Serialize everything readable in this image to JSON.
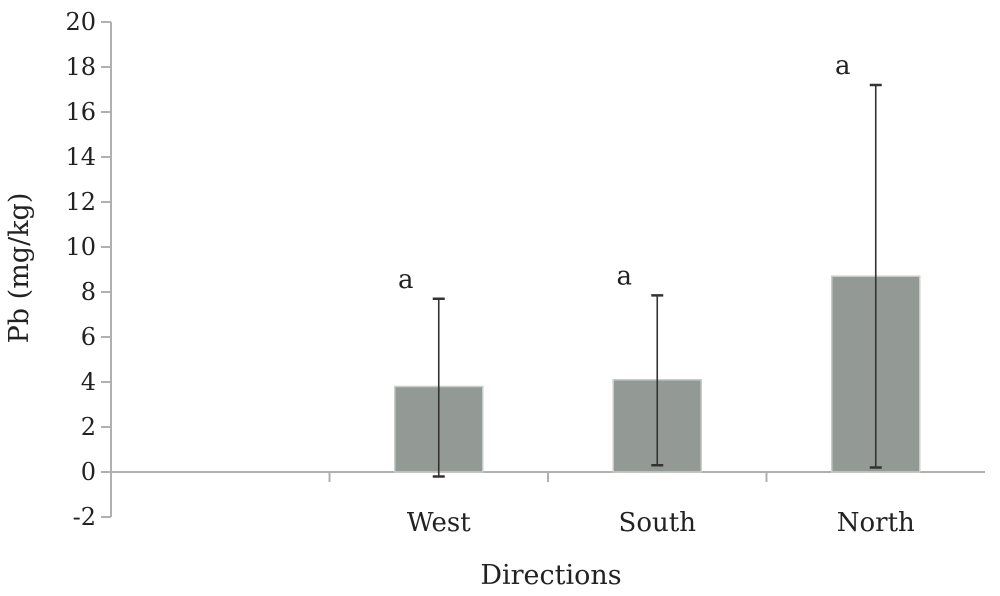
{
  "chart_data": {
    "type": "bar",
    "title": "",
    "xlabel": "Directions",
    "ylabel": "Pb (mg/kg)",
    "ylim": [
      -2,
      20
    ],
    "yticks": [
      -2,
      0,
      2,
      4,
      6,
      8,
      10,
      12,
      14,
      16,
      18,
      20
    ],
    "grid": false,
    "legend": "none",
    "categories": [
      "",
      "West",
      "South",
      "North"
    ],
    "values": [
      null,
      3.8,
      4.1,
      8.7
    ],
    "error_bars": [
      null,
      {
        "low": -0.2,
        "high": 7.7
      },
      {
        "low": 0.3,
        "high": 7.85
      },
      {
        "low": 0.2,
        "high": 17.2
      }
    ],
    "annotations": [
      "",
      "a",
      "a",
      "a"
    ],
    "colors": {
      "bar_fill": "#939a96",
      "bar_stroke": "#c8cdca",
      "error_bar": "#333333",
      "axis": "#b0b0b0"
    }
  }
}
